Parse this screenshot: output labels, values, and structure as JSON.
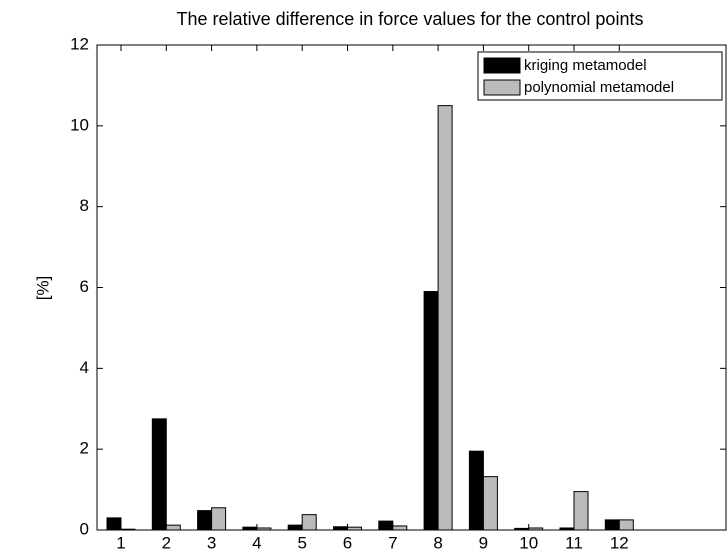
{
  "chart_data": {
    "type": "bar",
    "title": "The relative difference in force values for the control points",
    "y_label": "[%]",
    "categories": [
      "1",
      "2",
      "3",
      "4",
      "5",
      "6",
      "7",
      "8",
      "9",
      "10",
      "11",
      "12"
    ],
    "series": [
      {
        "name": "kriging metamodel",
        "color": "#000000",
        "values": [
          0.3,
          2.75,
          0.48,
          0.07,
          0.12,
          0.08,
          0.22,
          5.9,
          1.95,
          0.04,
          0.05,
          0.25
        ]
      },
      {
        "name": "polynomial metamodel",
        "color": "#bbbbbb",
        "values": [
          0.02,
          0.12,
          0.55,
          0.05,
          0.38,
          0.07,
          0.1,
          10.5,
          1.32,
          0.05,
          0.95,
          0.25
        ]
      }
    ],
    "ylim": [
      0,
      12
    ],
    "yticks": [
      0,
      2,
      4,
      6,
      8,
      10,
      12
    ],
    "legend": "upper right"
  }
}
